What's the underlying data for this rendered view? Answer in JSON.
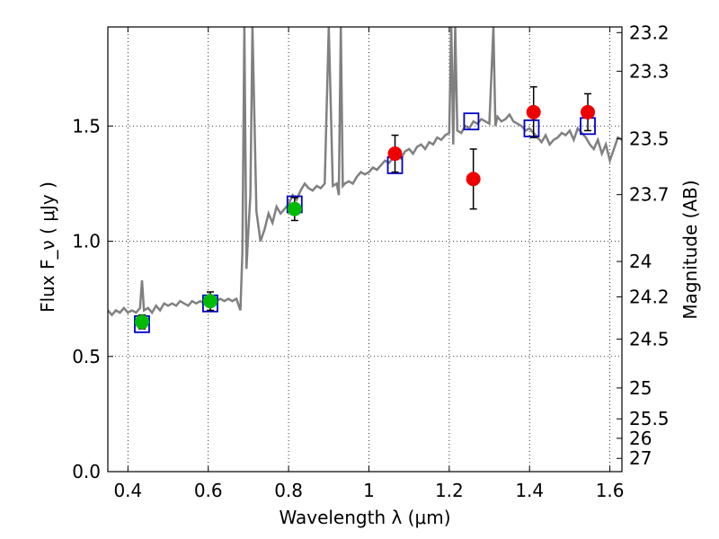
{
  "chart_data": {
    "type": "scatter",
    "xlabel": "Wavelength  λ (μm)",
    "ylabel": "Flux  F_ν  ( μJy )",
    "ylabel_right": "Magnitude (AB)",
    "xlim": [
      0.35,
      1.63
    ],
    "ylim": [
      0.0,
      1.93
    ],
    "grid": true,
    "x_ticks": [
      0.4,
      0.6,
      0.8,
      1.0,
      1.2,
      1.4,
      1.6
    ],
    "x_tick_labels": [
      "0.4",
      "0.6",
      "0.8",
      "1",
      "1.2",
      "1.4",
      "1.6"
    ],
    "y_ticks": [
      0.0,
      0.5,
      1.0,
      1.5
    ],
    "y_tick_labels": [
      "0.0",
      "0.5",
      "1.0",
      "1.5"
    ],
    "right_ticks": [
      23.2,
      23.3,
      23.5,
      23.7,
      24,
      24.2,
      24.5,
      25,
      25.5,
      26,
      27
    ],
    "right_tick_labels": [
      "23.2",
      "23.3",
      "23.5",
      "23.7",
      "24",
      "24.2",
      "24.5",
      "25",
      "25.5",
      "26",
      "27"
    ],
    "colors": {
      "spectrum": "#808080",
      "model_box": "#0000cc",
      "green_points": "#00bb00",
      "red_points": "#ee0000",
      "grid": "#000000"
    },
    "series": [
      {
        "kind": "line",
        "x": [
          0.35,
          0.36,
          0.37,
          0.38,
          0.39,
          0.4,
          0.41,
          0.42,
          0.43,
          0.435,
          0.44,
          0.45,
          0.46,
          0.47,
          0.48,
          0.49,
          0.5,
          0.51,
          0.52,
          0.53,
          0.54,
          0.55,
          0.56,
          0.57,
          0.58,
          0.59,
          0.6,
          0.61,
          0.62,
          0.63,
          0.64,
          0.65,
          0.66,
          0.67,
          0.68,
          0.685,
          0.69,
          0.695,
          0.7,
          0.705,
          0.71,
          0.72,
          0.73,
          0.74,
          0.75,
          0.76,
          0.77,
          0.78,
          0.79,
          0.8,
          0.81,
          0.82,
          0.83,
          0.84,
          0.85,
          0.86,
          0.87,
          0.88,
          0.89,
          0.9,
          0.91,
          0.92,
          0.925,
          0.93,
          0.935,
          0.94,
          0.95,
          0.96,
          0.97,
          0.98,
          0.99,
          1.0,
          1.01,
          1.02,
          1.03,
          1.04,
          1.05,
          1.06,
          1.07,
          1.08,
          1.09,
          1.1,
          1.11,
          1.12,
          1.13,
          1.14,
          1.15,
          1.16,
          1.17,
          1.18,
          1.19,
          1.2,
          1.205,
          1.21,
          1.215,
          1.22,
          1.23,
          1.24,
          1.25,
          1.26,
          1.27,
          1.28,
          1.29,
          1.3,
          1.31,
          1.315,
          1.32,
          1.33,
          1.34,
          1.35,
          1.36,
          1.37,
          1.38,
          1.39,
          1.4,
          1.41,
          1.42,
          1.43,
          1.44,
          1.45,
          1.46,
          1.47,
          1.48,
          1.49,
          1.5,
          1.51,
          1.52,
          1.53,
          1.54,
          1.55,
          1.56,
          1.57,
          1.58,
          1.59,
          1.6,
          1.61,
          1.62,
          1.63
        ],
        "y": [
          0.7,
          0.68,
          0.7,
          0.69,
          0.71,
          0.69,
          0.7,
          0.69,
          0.71,
          0.83,
          0.7,
          0.71,
          0.69,
          0.72,
          0.7,
          0.73,
          0.72,
          0.73,
          0.72,
          0.74,
          0.73,
          0.72,
          0.74,
          0.73,
          0.74,
          0.73,
          0.75,
          0.74,
          0.74,
          0.75,
          0.74,
          0.75,
          0.74,
          0.75,
          0.7,
          0.95,
          1.93,
          0.88,
          1.05,
          1.2,
          1.93,
          1.13,
          1.0,
          1.05,
          1.12,
          1.08,
          1.15,
          1.12,
          1.14,
          1.16,
          1.2,
          1.18,
          1.22,
          1.25,
          1.23,
          1.22,
          1.24,
          1.23,
          1.25,
          1.93,
          1.24,
          1.25,
          1.2,
          1.93,
          1.24,
          1.25,
          1.26,
          1.25,
          1.28,
          1.3,
          1.29,
          1.3,
          1.32,
          1.31,
          1.33,
          1.35,
          1.34,
          1.36,
          1.38,
          1.36,
          1.39,
          1.4,
          1.38,
          1.41,
          1.42,
          1.4,
          1.43,
          1.42,
          1.45,
          1.44,
          1.46,
          1.47,
          1.93,
          1.42,
          1.93,
          1.48,
          1.47,
          1.5,
          1.49,
          1.52,
          1.51,
          1.53,
          1.52,
          1.51,
          1.93,
          1.5,
          1.54,
          1.52,
          1.53,
          1.55,
          1.52,
          1.51,
          1.5,
          1.48,
          1.49,
          1.47,
          1.45,
          1.43,
          1.46,
          1.42,
          1.44,
          1.45,
          1.47,
          1.46,
          1.48,
          1.44,
          1.49,
          1.47,
          1.45,
          1.42,
          1.4,
          1.44,
          1.38,
          1.42,
          1.35,
          1.4,
          1.45,
          1.44
        ]
      },
      {
        "kind": "model_boxes",
        "x": [
          0.435,
          0.605,
          0.815,
          1.065,
          1.255,
          1.405,
          1.545
        ],
        "y": [
          0.64,
          0.73,
          1.16,
          1.33,
          1.52,
          1.49,
          1.5
        ]
      },
      {
        "kind": "points_green",
        "x": [
          0.435,
          0.605,
          0.815
        ],
        "y": [
          0.65,
          0.74,
          1.14
        ],
        "err": [
          0.03,
          0.04,
          0.05
        ]
      },
      {
        "kind": "points_red",
        "x": [
          1.065,
          1.26,
          1.41,
          1.545
        ],
        "y": [
          1.38,
          1.27,
          1.56,
          1.56
        ],
        "err": [
          0.08,
          0.13,
          0.11,
          0.08
        ]
      }
    ]
  }
}
